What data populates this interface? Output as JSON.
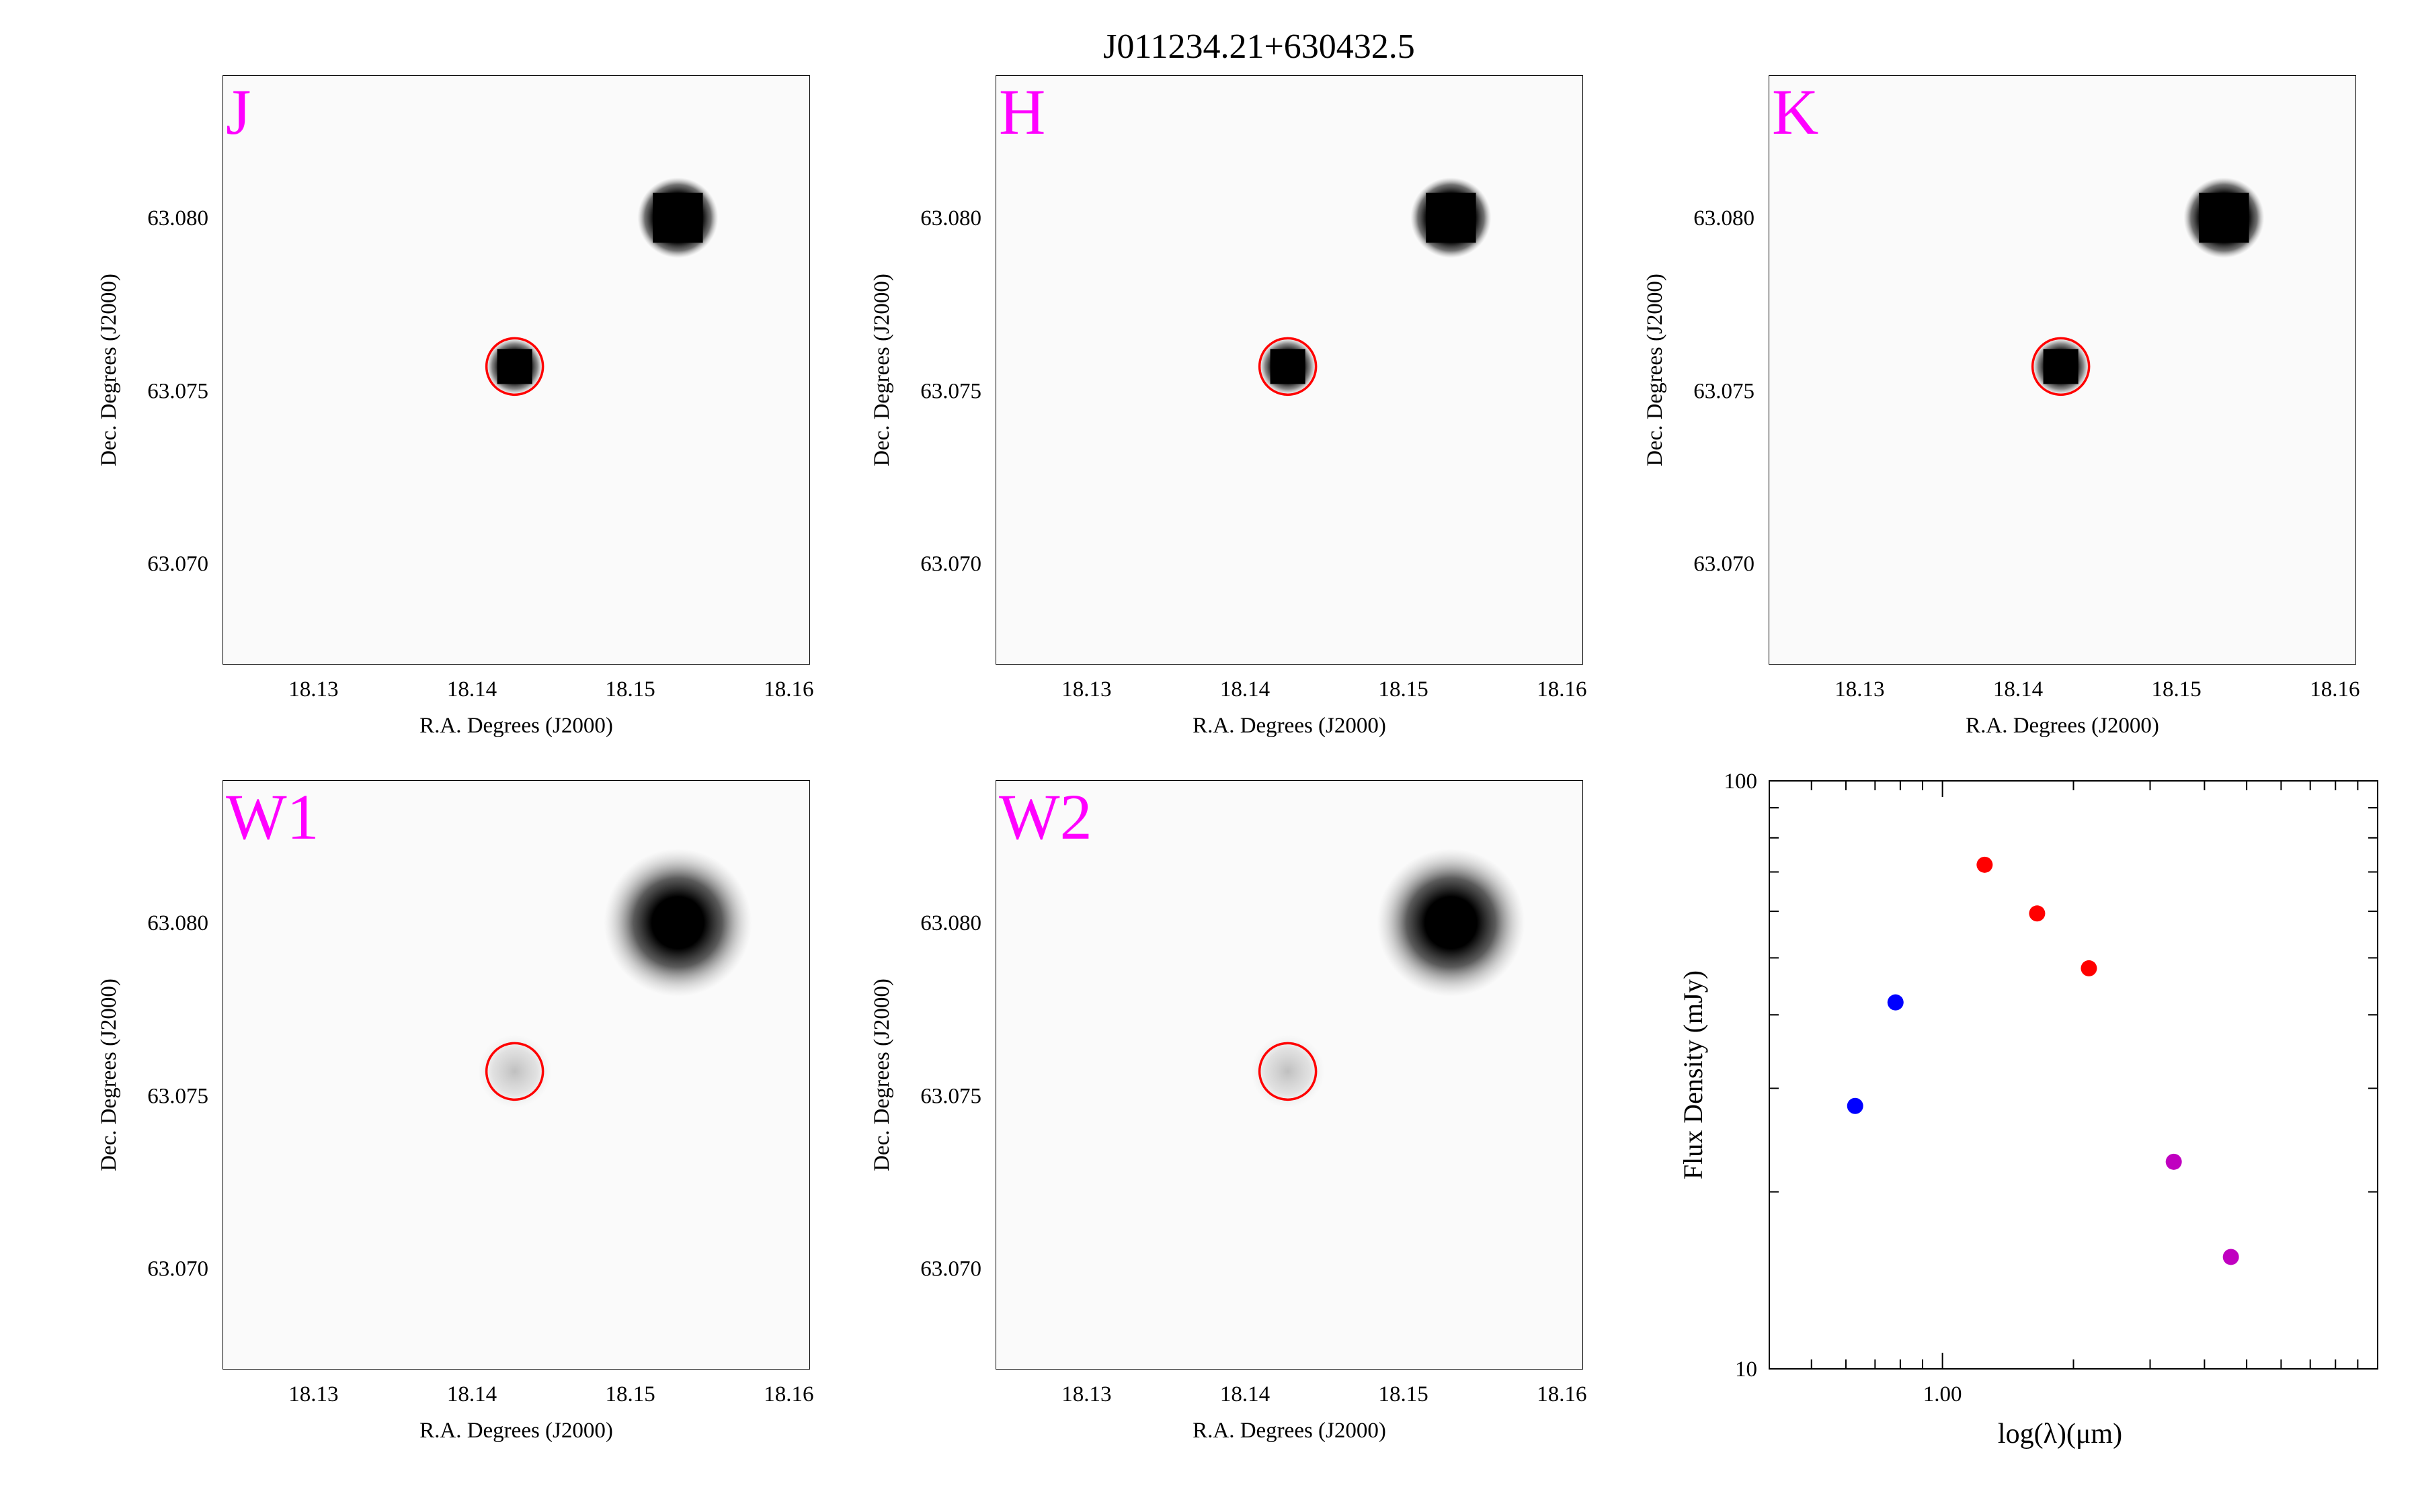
{
  "figure": {
    "title": "J011234.21+630432.5"
  },
  "chart_data": [
    {
      "type": "image",
      "band": "J",
      "band_color": "#ff00ff",
      "xlabel": "R.A. Degrees (J2000)",
      "ylabel": "Dec. Degrees (J2000)",
      "xlim": [
        18.1243,
        18.1613
      ],
      "ylim": [
        63.0671,
        63.0841
      ],
      "xticks": [
        "18.13",
        "18.14",
        "18.15",
        "18.16"
      ],
      "yticks": [
        "63.070",
        "63.075",
        "63.080"
      ],
      "target": {
        "ra": 18.1427,
        "dec": 63.0757,
        "marker_color": "#ff0000"
      },
      "sources": [
        {
          "ra": 18.1427,
          "dec": 63.0757,
          "kind": "point"
        },
        {
          "ra": 18.153,
          "dec": 63.08,
          "kind": "point-bright"
        }
      ]
    },
    {
      "type": "image",
      "band": "H",
      "band_color": "#ff00ff",
      "xlabel": "R.A. Degrees (J2000)",
      "ylabel": "Dec. Degrees (J2000)",
      "xlim": [
        18.1243,
        18.1613
      ],
      "ylim": [
        63.0671,
        63.0841
      ],
      "xticks": [
        "18.13",
        "18.14",
        "18.15",
        "18.16"
      ],
      "yticks": [
        "63.070",
        "63.075",
        "63.080"
      ],
      "target": {
        "ra": 18.1427,
        "dec": 63.0757,
        "marker_color": "#ff0000"
      },
      "sources": [
        {
          "ra": 18.1427,
          "dec": 63.0757,
          "kind": "point"
        },
        {
          "ra": 18.153,
          "dec": 63.08,
          "kind": "point-bright"
        }
      ]
    },
    {
      "type": "image",
      "band": "K",
      "band_color": "#ff00ff",
      "xlabel": "R.A. Degrees (J2000)",
      "ylabel": "Dec. Degrees (J2000)",
      "xlim": [
        18.1243,
        18.1613
      ],
      "ylim": [
        63.0671,
        63.0841
      ],
      "xticks": [
        "18.13",
        "18.14",
        "18.15",
        "18.16"
      ],
      "yticks": [
        "63.070",
        "63.075",
        "63.080"
      ],
      "target": {
        "ra": 18.1427,
        "dec": 63.0757,
        "marker_color": "#ff0000"
      },
      "sources": [
        {
          "ra": 18.1427,
          "dec": 63.0757,
          "kind": "point"
        },
        {
          "ra": 18.153,
          "dec": 63.08,
          "kind": "point-bright"
        }
      ]
    },
    {
      "type": "image",
      "band": "W1",
      "band_color": "#ff00ff",
      "xlabel": "R.A. Degrees (J2000)",
      "ylabel": "Dec. Degrees (J2000)",
      "xlim": [
        18.1243,
        18.1613
      ],
      "ylim": [
        63.0671,
        63.0841
      ],
      "xticks": [
        "18.13",
        "18.14",
        "18.15",
        "18.16"
      ],
      "yticks": [
        "63.070",
        "63.075",
        "63.080"
      ],
      "target": {
        "ra": 18.1427,
        "dec": 63.0757,
        "marker_color": "#ff0000"
      },
      "sources": [
        {
          "ra": 18.1427,
          "dec": 63.0757,
          "kind": "faint-diffuse"
        },
        {
          "ra": 18.153,
          "dec": 63.08,
          "kind": "diffuse-bright"
        }
      ]
    },
    {
      "type": "image",
      "band": "W2",
      "band_color": "#ff00ff",
      "xlabel": "R.A. Degrees (J2000)",
      "ylabel": "Dec. Degrees (J2000)",
      "xlim": [
        18.1243,
        18.1613
      ],
      "ylim": [
        63.0671,
        63.0841
      ],
      "xticks": [
        "18.13",
        "18.14",
        "18.15",
        "18.16"
      ],
      "yticks": [
        "63.070",
        "63.075",
        "63.080"
      ],
      "target": {
        "ra": 18.1427,
        "dec": 63.0757,
        "marker_color": "#ff0000"
      },
      "sources": [
        {
          "ra": 18.1427,
          "dec": 63.0757,
          "kind": "faint-diffuse"
        },
        {
          "ra": 18.153,
          "dec": 63.08,
          "kind": "diffuse-bright"
        }
      ]
    },
    {
      "type": "scatter",
      "xlabel": "log(λ)(μm)",
      "ylabel": "Flux Density (mJy)",
      "xscale": "log",
      "yscale": "log",
      "xlim": [
        0.4,
        10
      ],
      "ylim": [
        10,
        100
      ],
      "xticks": [
        1.0
      ],
      "xtick_labels": [
        "1.00"
      ],
      "yticks": [
        10,
        100
      ],
      "ytick_labels": [
        "10",
        "100"
      ],
      "grid": false,
      "series": [
        {
          "color": "#0000ff",
          "x": [
            0.63,
            0.78
          ],
          "y": [
            28,
            42
          ]
        },
        {
          "color": "#ff0000",
          "x": [
            1.25,
            1.65,
            2.17
          ],
          "y": [
            72,
            59.5,
            48
          ]
        },
        {
          "color": "#c000c0",
          "x": [
            3.4,
            4.6
          ],
          "y": [
            22.5,
            15.5
          ]
        }
      ]
    }
  ]
}
